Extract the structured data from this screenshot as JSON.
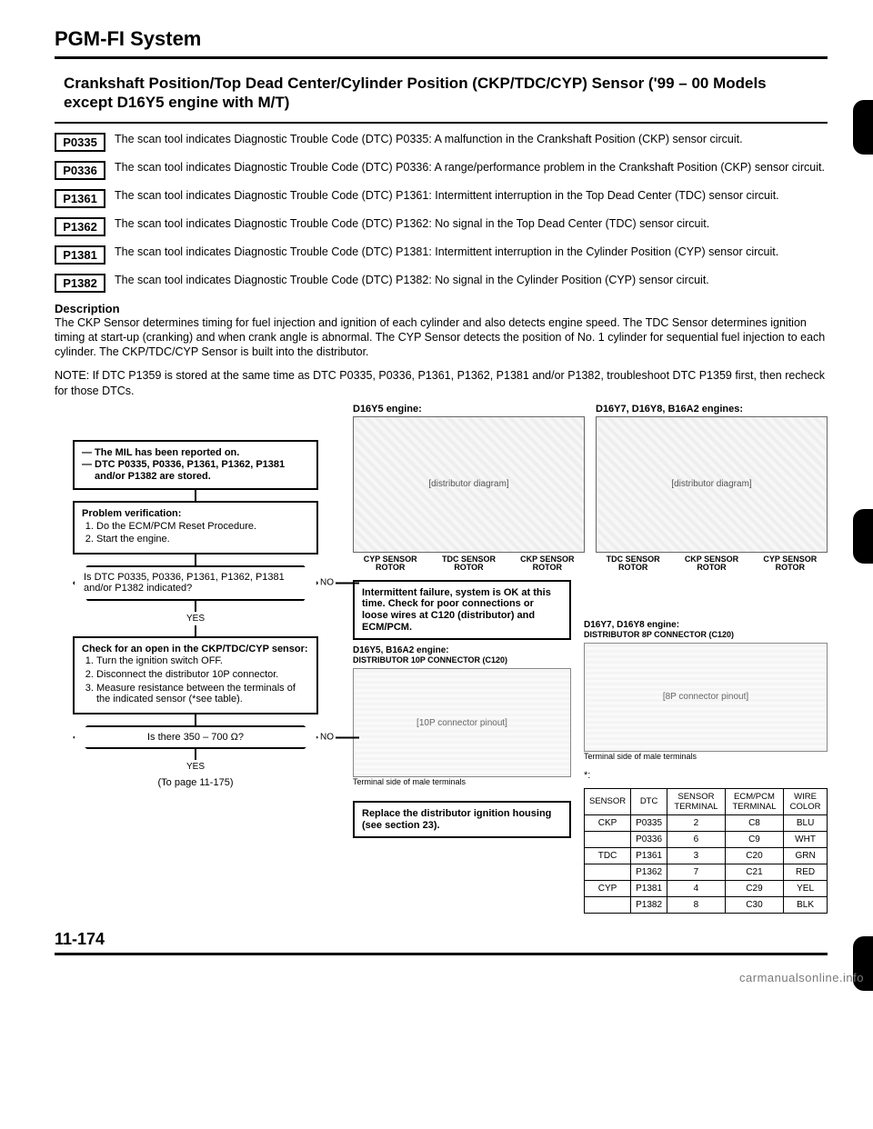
{
  "page": {
    "main_title": "PGM-FI System",
    "section_title": "Crankshaft Position/Top Dead Center/Cylinder Position (CKP/TDC/CYP) Sensor ('99 – 00 Models except D16Y5 engine with M/T)",
    "page_number": "11-174",
    "to_page": "(To page 11-175)",
    "watermark": "carmanualsonline.info"
  },
  "dtcs": [
    {
      "code": "P0335",
      "text": "The scan tool indicates Diagnostic Trouble Code (DTC) P0335: A malfunction in the Crankshaft Position (CKP) sensor circuit."
    },
    {
      "code": "P0336",
      "text": "The scan tool indicates Diagnostic Trouble Code (DTC) P0336: A range/performance problem in the Crankshaft Position (CKP) sensor circuit."
    },
    {
      "code": "P1361",
      "text": "The scan tool indicates Diagnostic Trouble Code (DTC) P1361: Intermittent interruption in the Top Dead Center (TDC) sensor circuit."
    },
    {
      "code": "P1362",
      "text": "The scan tool indicates Diagnostic Trouble Code (DTC) P1362: No signal in the Top Dead Center (TDC) sensor circuit."
    },
    {
      "code": "P1381",
      "text": "The scan tool indicates Diagnostic Trouble Code (DTC) P1381: Intermittent interruption in the Cylinder Position (CYP) sensor circuit."
    },
    {
      "code": "P1382",
      "text": "The scan tool indicates Diagnostic Trouble Code (DTC) P1382: No signal in the Cylinder Position (CYP) sensor circuit."
    }
  ],
  "description": {
    "head": "Description",
    "body": "The CKP Sensor determines timing for fuel injection and ignition of each cylinder and also detects engine speed. The TDC Sensor determines ignition timing at start-up (cranking) and when crank angle is abnormal. The CYP Sensor detects the position of No. 1 cylinder for sequential fuel injection to each cylinder. The CKP/TDC/CYP Sensor is built into the distributor.",
    "note": "NOTE: If DTC P1359 is stored at the same time as DTC P0335, P0336, P1361, P1362, P1381 and/or P1382, troubleshoot DTC P1359 first, then recheck for those DTCs."
  },
  "engines": {
    "left": {
      "label": "D16Y5 engine:",
      "placeholder": "[distributor diagram]",
      "s1": "CYP SENSOR ROTOR",
      "s2": "TDC SENSOR ROTOR",
      "s3": "CKP SENSOR ROTOR"
    },
    "right": {
      "label": "D16Y7, D16Y8, B16A2 engines:",
      "placeholder": "[distributor diagram]",
      "s1": "TDC SENSOR ROTOR",
      "s2": "CKP SENSOR ROTOR",
      "s3": "CYP SENSOR ROTOR"
    }
  },
  "flow": {
    "mil1": "The MIL has been reported on.",
    "mil2": "DTC P0335, P0336, P1361, P1362, P1381 and/or P1382 are stored.",
    "verify_head": "Problem verification:",
    "verify1": "Do the ECM/PCM Reset Procedure.",
    "verify2": "Start the engine.",
    "diamond1": "Is DTC P0335, P0336, P1361, P1362, P1381 and/or P1382 indicated?",
    "yes": "YES",
    "no": "NO",
    "action1": "Intermittent failure, system is OK at this time. Check for poor connections or loose wires at C120 (distributor) and ECM/PCM.",
    "check_head": "Check for an open in the CKP/TDC/CYP sensor:",
    "check1": "Turn the ignition switch OFF.",
    "check2": "Disconnect the distributor 10P connector.",
    "check3": "Measure resistance between the terminals of the indicated sensor (*see table).",
    "diamond2": "Is there 350 – 700 Ω?",
    "action2": "Replace the distributor ignition housing (see section 23).",
    "conn1_label": "D16Y5, B16A2 engine:",
    "conn1_sub": "DISTRIBUTOR 10P CONNECTOR (C120)",
    "conn1_placeholder": "[10P connector pinout]",
    "conn2_label": "D16Y7, D16Y8 engine:",
    "conn2_sub": "DISTRIBUTOR 8P CONNECTOR (C120)",
    "conn2_placeholder": "[8P connector pinout]",
    "terminal_note": "Terminal side of male terminals"
  },
  "table": {
    "asterisk": "*:",
    "headers": [
      "SENSOR",
      "DTC",
      "SENSOR TERMINAL",
      "ECM/PCM TERMINAL",
      "WIRE COLOR"
    ],
    "rows": [
      [
        "CKP",
        "P0335",
        "2",
        "C8",
        "BLU"
      ],
      [
        "",
        "P0336",
        "6",
        "C9",
        "WHT"
      ],
      [
        "TDC",
        "P1361",
        "3",
        "C20",
        "GRN"
      ],
      [
        "",
        "P1362",
        "7",
        "C21",
        "RED"
      ],
      [
        "CYP",
        "P1381",
        "4",
        "C29",
        "YEL"
      ],
      [
        "",
        "P1382",
        "8",
        "C30",
        "BLK"
      ]
    ]
  }
}
